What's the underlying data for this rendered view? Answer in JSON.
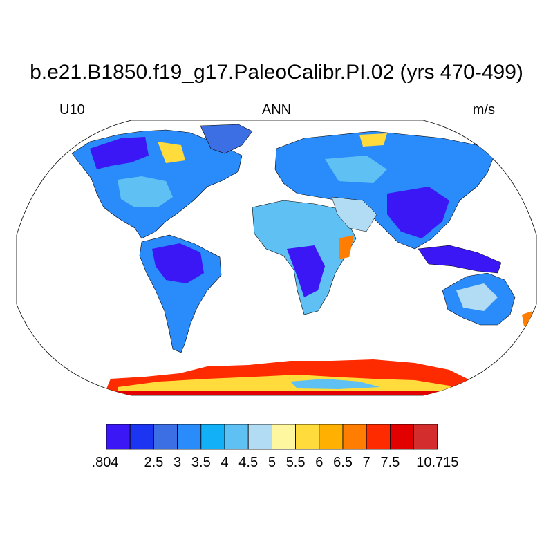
{
  "title": "b.e21.B1850.f19_g17.PaleoCalibr.PI.02 (yrs 470-499)",
  "left_subtitle": "U10",
  "center_subtitle": "ANN",
  "right_subtitle": "m/s",
  "colorbar": {
    "colors": [
      "#3a17f4",
      "#1c35f2",
      "#3c6fe4",
      "#2a8cfb",
      "#12b1f7",
      "#5fc1f3",
      "#b2dcf3",
      "#fff7a0",
      "#ffdb3c",
      "#ffb000",
      "#ff7d00",
      "#ff2b00",
      "#e20000",
      "#d42d2d"
    ],
    "labels": [
      ".804",
      "2.5",
      "3",
      "3.5",
      "4",
      "4.5",
      "5",
      "5.5",
      "6",
      "6.5",
      "7",
      "7.5",
      "10.715"
    ]
  }
}
